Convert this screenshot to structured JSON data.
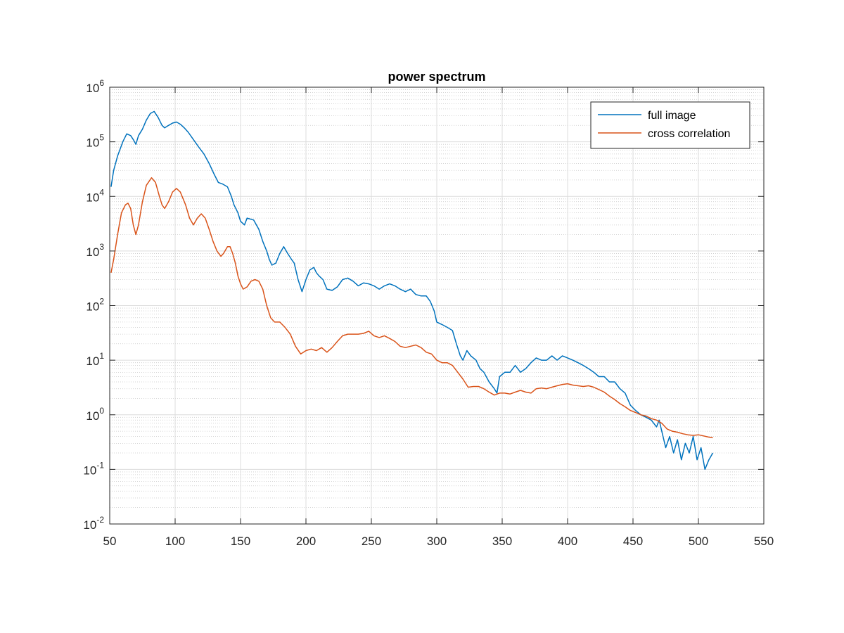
{
  "chart_data": {
    "type": "line",
    "title": "power spectrum",
    "xlabel": "",
    "ylabel": "",
    "y_scale": "log",
    "xlim": [
      50,
      550
    ],
    "ylim": [
      0.01,
      1000000
    ],
    "x_ticks": [
      50,
      100,
      150,
      200,
      250,
      300,
      350,
      400,
      450,
      500,
      550
    ],
    "x_tick_labels": [
      "50",
      "100",
      "150",
      "200",
      "250",
      "300",
      "350",
      "400",
      "450",
      "500",
      "550"
    ],
    "y_ticks": [
      0.01,
      0.1,
      1,
      10,
      100,
      1000,
      10000,
      100000,
      1000000
    ],
    "y_tick_labels": [
      {
        "base": "10",
        "exp": "-2"
      },
      {
        "base": "10",
        "exp": "-1"
      },
      {
        "base": "10",
        "exp": "0"
      },
      {
        "base": "10",
        "exp": "1"
      },
      {
        "base": "10",
        "exp": "2"
      },
      {
        "base": "10",
        "exp": "3"
      },
      {
        "base": "10",
        "exp": "4"
      },
      {
        "base": "10",
        "exp": "5"
      },
      {
        "base": "10",
        "exp": "6"
      }
    ],
    "grid": true,
    "minor_grid": true,
    "legend_position": "top-right",
    "series": [
      {
        "name": "full image",
        "color": "#0072BD",
        "points": [
          [
            51,
            15000
          ],
          [
            53,
            30000
          ],
          [
            56,
            55000
          ],
          [
            60,
            100000
          ],
          [
            63,
            140000
          ],
          [
            66,
            130000
          ],
          [
            68,
            110000
          ],
          [
            70,
            90000
          ],
          [
            72,
            130000
          ],
          [
            75,
            170000
          ],
          [
            78,
            250000
          ],
          [
            81,
            330000
          ],
          [
            84,
            360000
          ],
          [
            87,
            280000
          ],
          [
            90,
            200000
          ],
          [
            92,
            180000
          ],
          [
            95,
            200000
          ],
          [
            98,
            220000
          ],
          [
            101,
            230000
          ],
          [
            104,
            210000
          ],
          [
            107,
            180000
          ],
          [
            110,
            150000
          ],
          [
            114,
            110000
          ],
          [
            118,
            80000
          ],
          [
            122,
            60000
          ],
          [
            126,
            40000
          ],
          [
            130,
            25000
          ],
          [
            133,
            18000
          ],
          [
            136,
            17000
          ],
          [
            140,
            15000
          ],
          [
            143,
            10000
          ],
          [
            145,
            7000
          ],
          [
            148,
            5000
          ],
          [
            150,
            3500
          ],
          [
            153,
            3000
          ],
          [
            155,
            4000
          ],
          [
            160,
            3700
          ],
          [
            164,
            2500
          ],
          [
            167,
            1500
          ],
          [
            170,
            1000
          ],
          [
            172,
            700
          ],
          [
            174,
            550
          ],
          [
            177,
            600
          ],
          [
            180,
            900
          ],
          [
            183,
            1200
          ],
          [
            186,
            900
          ],
          [
            189,
            700
          ],
          [
            191,
            600
          ],
          [
            194,
            300
          ],
          [
            197,
            180
          ],
          [
            200,
            300
          ],
          [
            203,
            450
          ],
          [
            206,
            500
          ],
          [
            208,
            400
          ],
          [
            210,
            350
          ],
          [
            213,
            300
          ],
          [
            216,
            200
          ],
          [
            220,
            190
          ],
          [
            224,
            220
          ],
          [
            228,
            300
          ],
          [
            232,
            320
          ],
          [
            236,
            280
          ],
          [
            240,
            230
          ],
          [
            244,
            260
          ],
          [
            248,
            250
          ],
          [
            252,
            230
          ],
          [
            256,
            200
          ],
          [
            260,
            230
          ],
          [
            264,
            250
          ],
          [
            268,
            230
          ],
          [
            272,
            200
          ],
          [
            276,
            180
          ],
          [
            280,
            200
          ],
          [
            284,
            160
          ],
          [
            288,
            150
          ],
          [
            292,
            150
          ],
          [
            295,
            120
          ],
          [
            298,
            80
          ],
          [
            300,
            50
          ],
          [
            304,
            45
          ],
          [
            308,
            40
          ],
          [
            312,
            35
          ],
          [
            315,
            20
          ],
          [
            318,
            12
          ],
          [
            320,
            10
          ],
          [
            323,
            15
          ],
          [
            326,
            12
          ],
          [
            330,
            10
          ],
          [
            333,
            7
          ],
          [
            336,
            6
          ],
          [
            340,
            4
          ],
          [
            344,
            3
          ],
          [
            346,
            2.5
          ],
          [
            348,
            5
          ],
          [
            352,
            6
          ],
          [
            356,
            6
          ],
          [
            360,
            8
          ],
          [
            364,
            6
          ],
          [
            368,
            7
          ],
          [
            372,
            9
          ],
          [
            376,
            11
          ],
          [
            380,
            10
          ],
          [
            384,
            10
          ],
          [
            388,
            12
          ],
          [
            392,
            10
          ],
          [
            396,
            12
          ],
          [
            400,
            11
          ],
          [
            404,
            10
          ],
          [
            408,
            9
          ],
          [
            412,
            8
          ],
          [
            416,
            7
          ],
          [
            420,
            6
          ],
          [
            424,
            5
          ],
          [
            428,
            5
          ],
          [
            432,
            4
          ],
          [
            436,
            4
          ],
          [
            440,
            3
          ],
          [
            444,
            2.5
          ],
          [
            448,
            1.5
          ],
          [
            452,
            1.2
          ],
          [
            456,
            1
          ],
          [
            460,
            0.9
          ],
          [
            464,
            0.8
          ],
          [
            468,
            0.6
          ],
          [
            470,
            0.8
          ],
          [
            472,
            0.5
          ],
          [
            475,
            0.25
          ],
          [
            478,
            0.4
          ],
          [
            481,
            0.2
          ],
          [
            484,
            0.35
          ],
          [
            487,
            0.15
          ],
          [
            490,
            0.3
          ],
          [
            493,
            0.2
          ],
          [
            496,
            0.4
          ],
          [
            499,
            0.15
          ],
          [
            502,
            0.25
          ],
          [
            505,
            0.1
          ],
          [
            508,
            0.15
          ],
          [
            511,
            0.2
          ]
        ]
      },
      {
        "name": "cross correlation",
        "color": "#D95319",
        "points": [
          [
            51,
            400
          ],
          [
            53,
            700
          ],
          [
            56,
            2000
          ],
          [
            59,
            5000
          ],
          [
            62,
            7000
          ],
          [
            64,
            7500
          ],
          [
            66,
            6000
          ],
          [
            68,
            3000
          ],
          [
            70,
            2000
          ],
          [
            72,
            3000
          ],
          [
            75,
            8000
          ],
          [
            78,
            16000
          ],
          [
            82,
            22000
          ],
          [
            85,
            18000
          ],
          [
            88,
            10000
          ],
          [
            90,
            7000
          ],
          [
            92,
            6000
          ],
          [
            95,
            8000
          ],
          [
            98,
            12000
          ],
          [
            101,
            14000
          ],
          [
            104,
            12000
          ],
          [
            108,
            7000
          ],
          [
            111,
            4000
          ],
          [
            114,
            3000
          ],
          [
            117,
            4000
          ],
          [
            120,
            4800
          ],
          [
            123,
            4000
          ],
          [
            126,
            2500
          ],
          [
            129,
            1500
          ],
          [
            132,
            1000
          ],
          [
            135,
            800
          ],
          [
            137,
            900
          ],
          [
            140,
            1200
          ],
          [
            142,
            1200
          ],
          [
            144,
            900
          ],
          [
            146,
            600
          ],
          [
            148,
            350
          ],
          [
            150,
            250
          ],
          [
            152,
            200
          ],
          [
            155,
            220
          ],
          [
            158,
            280
          ],
          [
            161,
            300
          ],
          [
            164,
            280
          ],
          [
            167,
            200
          ],
          [
            170,
            100
          ],
          [
            173,
            60
          ],
          [
            176,
            50
          ],
          [
            180,
            50
          ],
          [
            184,
            40
          ],
          [
            188,
            30
          ],
          [
            192,
            18
          ],
          [
            196,
            13
          ],
          [
            200,
            15
          ],
          [
            204,
            16
          ],
          [
            208,
            15
          ],
          [
            212,
            17
          ],
          [
            216,
            14
          ],
          [
            220,
            17
          ],
          [
            224,
            22
          ],
          [
            228,
            28
          ],
          [
            232,
            30
          ],
          [
            236,
            30
          ],
          [
            240,
            30
          ],
          [
            244,
            31
          ],
          [
            248,
            34
          ],
          [
            252,
            28
          ],
          [
            256,
            26
          ],
          [
            260,
            28
          ],
          [
            264,
            25
          ],
          [
            268,
            22
          ],
          [
            272,
            18
          ],
          [
            276,
            17
          ],
          [
            280,
            18
          ],
          [
            284,
            19
          ],
          [
            288,
            17
          ],
          [
            292,
            14
          ],
          [
            296,
            13
          ],
          [
            300,
            10
          ],
          [
            304,
            9
          ],
          [
            308,
            9
          ],
          [
            312,
            8
          ],
          [
            316,
            6
          ],
          [
            320,
            4.5
          ],
          [
            324,
            3.2
          ],
          [
            328,
            3.3
          ],
          [
            332,
            3.3
          ],
          [
            336,
            3
          ],
          [
            340,
            2.6
          ],
          [
            344,
            2.3
          ],
          [
            348,
            2.5
          ],
          [
            352,
            2.5
          ],
          [
            356,
            2.4
          ],
          [
            360,
            2.6
          ],
          [
            364,
            2.8
          ],
          [
            368,
            2.6
          ],
          [
            372,
            2.5
          ],
          [
            376,
            3
          ],
          [
            380,
            3.1
          ],
          [
            384,
            3
          ],
          [
            388,
            3.2
          ],
          [
            392,
            3.4
          ],
          [
            396,
            3.6
          ],
          [
            400,
            3.7
          ],
          [
            404,
            3.5
          ],
          [
            408,
            3.4
          ],
          [
            412,
            3.3
          ],
          [
            416,
            3.4
          ],
          [
            420,
            3.2
          ],
          [
            424,
            2.9
          ],
          [
            428,
            2.6
          ],
          [
            432,
            2.2
          ],
          [
            436,
            1.9
          ],
          [
            440,
            1.6
          ],
          [
            444,
            1.4
          ],
          [
            448,
            1.2
          ],
          [
            452,
            1.1
          ],
          [
            456,
            1
          ],
          [
            460,
            0.95
          ],
          [
            464,
            0.85
          ],
          [
            468,
            0.8
          ],
          [
            472,
            0.7
          ],
          [
            476,
            0.55
          ],
          [
            480,
            0.5
          ],
          [
            484,
            0.48
          ],
          [
            488,
            0.45
          ],
          [
            492,
            0.43
          ],
          [
            496,
            0.42
          ],
          [
            500,
            0.43
          ],
          [
            504,
            0.41
          ],
          [
            508,
            0.39
          ],
          [
            511,
            0.38
          ]
        ]
      }
    ]
  }
}
